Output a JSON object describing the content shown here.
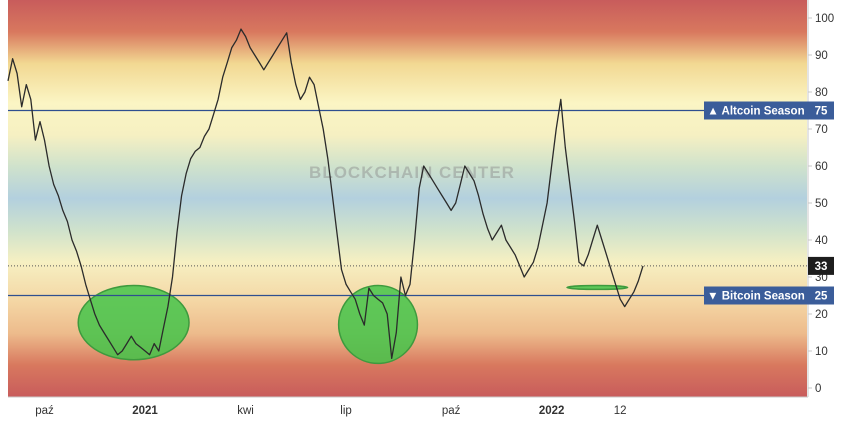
{
  "chart_data": {
    "type": "line",
    "title": "",
    "xlabel": "",
    "ylabel": "",
    "ylim": [
      0,
      100
    ],
    "y_ticks": [
      0,
      10,
      20,
      30,
      40,
      50,
      60,
      70,
      80,
      90,
      100
    ],
    "x_tick_labels": [
      "paź",
      "2021",
      "kwi",
      "lip",
      "paź",
      "2022",
      "12"
    ],
    "x_ticks": [
      {
        "label": "paź",
        "index": 8
      },
      {
        "label": "2021",
        "index": 30
      },
      {
        "label": "kwi",
        "index": 52
      },
      {
        "label": "lip",
        "index": 74
      },
      {
        "label": "paź",
        "index": 97
      },
      {
        "label": "2022",
        "index": 119
      },
      {
        "label": "12",
        "index": 134
      }
    ],
    "grid": false,
    "background": "gradient-bands",
    "reference_lines": [
      {
        "label": "▲ Altcoin Season",
        "value": 75,
        "color": "#2f4f8f"
      },
      {
        "label": "▼ Bitcoin Season",
        "value": 25,
        "color": "#2f4f8f"
      }
    ],
    "current_value": 33,
    "watermark": "BLOCKCHAIN CENTER",
    "highlight_color": "#44c44a",
    "series": [
      {
        "color": "#2b2b2b",
        "values": [
          83,
          89,
          85,
          76,
          82,
          78,
          67,
          72,
          67,
          60,
          55,
          52,
          48,
          45,
          40,
          37,
          33,
          28,
          24,
          20,
          17,
          15,
          13,
          11,
          9,
          10,
          12,
          14,
          12,
          11,
          10,
          9,
          12,
          10,
          16,
          22,
          30,
          42,
          52,
          58,
          62,
          64,
          65,
          68,
          70,
          74,
          78,
          84,
          88,
          92,
          94,
          97,
          95,
          92,
          90,
          88,
          86,
          88,
          90,
          92,
          94,
          96,
          88,
          82,
          78,
          80,
          84,
          82,
          76,
          70,
          62,
          52,
          42,
          32,
          28,
          26,
          24,
          20,
          17,
          27,
          25,
          24,
          23,
          20,
          8,
          15,
          30,
          25,
          28,
          40,
          54,
          60,
          58,
          56,
          54,
          52,
          50,
          48,
          50,
          55,
          60,
          58,
          56,
          52,
          47,
          43,
          40,
          42,
          44,
          40,
          38,
          36,
          33,
          30,
          32,
          34,
          38,
          44,
          50,
          60,
          70,
          78,
          65,
          55,
          45,
          34,
          33,
          36,
          40,
          44,
          40,
          36,
          32,
          28,
          24,
          22,
          24,
          26,
          29,
          33
        ]
      }
    ]
  }
}
